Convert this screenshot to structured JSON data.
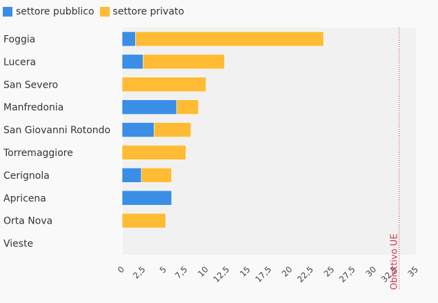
{
  "chart_data": {
    "type": "bar",
    "stacked": true,
    "orientation": "horizontal",
    "categories": [
      "Foggia",
      "Lucera",
      "San Severo",
      "Manfredonia",
      "San Giovanni Rotondo",
      "Torremaggiore",
      "Cerignola",
      "Apricena",
      "Orta Nova",
      "Vieste"
    ],
    "series": [
      {
        "name": "settore pubblico",
        "color": "#3a8ee6",
        "values": [
          1.6,
          2.5,
          0,
          6.5,
          3.8,
          0,
          2.3,
          5.9,
          0,
          0
        ]
      },
      {
        "name": "settore privato",
        "color": "#ffbb33",
        "values": [
          22.4,
          9.7,
          10.0,
          2.6,
          4.4,
          7.6,
          3.6,
          0,
          5.2,
          0
        ]
      }
    ],
    "xlim": [
      0,
      35
    ],
    "xticks": [
      "0",
      "2,5",
      "5",
      "7,5",
      "10",
      "12,5",
      "15",
      "17,5",
      "20",
      "22,5",
      "25",
      "27,5",
      "30",
      "32,5",
      "35"
    ],
    "target": {
      "value": 33,
      "label": "Obiettivo UE",
      "color": "#d2334f"
    },
    "legend_position": "top-left"
  }
}
